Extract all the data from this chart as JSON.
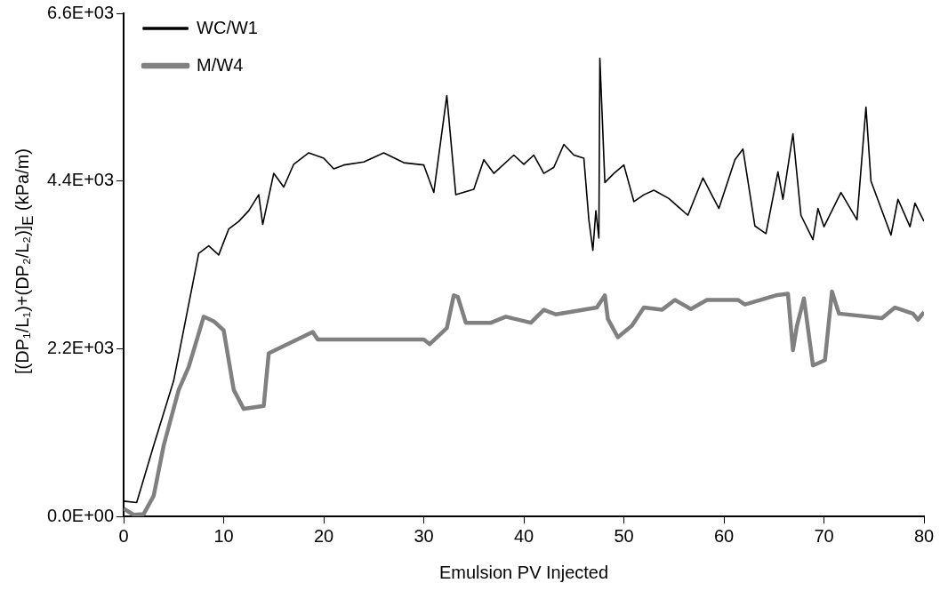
{
  "chart_data": {
    "type": "line",
    "xlabel": "Emulsion PV Injected",
    "ylabel": "[(DP₁/L₁)+(DP₂/L₂)]$_{E}$ (kPa/m)",
    "xlim": [
      0,
      80
    ],
    "xticks": [
      0,
      10,
      20,
      30,
      40,
      50,
      60,
      70,
      80
    ],
    "ylim": [
      0,
      6600
    ],
    "yticks": [
      {
        "value": 0,
        "label": "0.0E+00"
      },
      {
        "value": 2200,
        "label": "2.2E+03"
      },
      {
        "value": 4400,
        "label": "4.4E+03"
      },
      {
        "value": 6600,
        "label": "6.6E+03"
      }
    ],
    "grid": false,
    "legend": "top left",
    "marker": "none",
    "series": [
      {
        "name": "WC/W1",
        "color": "#000000",
        "x": [
          0,
          1.3,
          3,
          5,
          7.5,
          8.5,
          9.5,
          10.5,
          11.5,
          12.5,
          13.5,
          13.9,
          15,
          16,
          17,
          18.5,
          20,
          21,
          22,
          24,
          26,
          28,
          30,
          31,
          32.3,
          33.2,
          35,
          36,
          37,
          39,
          40,
          41,
          42,
          43,
          44,
          45,
          46,
          46.5,
          46.9,
          47.2,
          47.5,
          47.6,
          48.1,
          49,
          50,
          51,
          52,
          53,
          54.5,
          56.4,
          57.9,
          59.5,
          61.1,
          61.9,
          63.1,
          64.2,
          65.4,
          65.9,
          66.9,
          67.7,
          68.9,
          69.4,
          70,
          71.7,
          73.3,
          74.2,
          74.7,
          76.7,
          77.4,
          78.6,
          79.1,
          80
        ],
        "values": [
          200,
          180,
          930,
          1780,
          3450,
          3550,
          3430,
          3770,
          3870,
          4010,
          4220,
          3830,
          4500,
          4320,
          4620,
          4770,
          4700,
          4560,
          4610,
          4650,
          4770,
          4640,
          4610,
          4250,
          5520,
          4220,
          4290,
          4680,
          4500,
          4740,
          4620,
          4740,
          4500,
          4580,
          4880,
          4740,
          4700,
          3890,
          3490,
          4010,
          3650,
          6010,
          4380,
          4500,
          4610,
          4130,
          4220,
          4280,
          4170,
          3950,
          4440,
          4040,
          4680,
          4820,
          3810,
          3710,
          4520,
          4160,
          5020,
          3950,
          3630,
          4040,
          3800,
          4250,
          3890,
          5370,
          4400,
          3690,
          4160,
          3800,
          4110,
          3870
        ]
      },
      {
        "name": "M/W4",
        "color": "#808080",
        "x": [
          0,
          1,
          2,
          3,
          4,
          5.5,
          6.5,
          8,
          9,
          10,
          11,
          12,
          14,
          14.5,
          18.9,
          19.4,
          30,
          30.6,
          32.3,
          33,
          33.4,
          34.2,
          36.7,
          38.2,
          40.7,
          42,
          43.2,
          47.3,
          48.1,
          48.4,
          49.4,
          50.8,
          52,
          53.8,
          55.1,
          56.7,
          58.3,
          61.4,
          62.1,
          65.2,
          66.4,
          66.9,
          67.3,
          68,
          68.9,
          70.1,
          70.8,
          71.5,
          75.8,
          77.1,
          78.9,
          79.4,
          80
        ],
        "values": [
          100,
          20,
          30,
          270,
          930,
          1660,
          1960,
          2620,
          2560,
          2440,
          1660,
          1410,
          1450,
          2140,
          2420,
          2320,
          2320,
          2260,
          2470,
          2900,
          2880,
          2540,
          2540,
          2620,
          2540,
          2710,
          2650,
          2740,
          2900,
          2590,
          2350,
          2500,
          2740,
          2710,
          2840,
          2720,
          2840,
          2840,
          2780,
          2900,
          2920,
          2180,
          2500,
          2860,
          1980,
          2050,
          2950,
          2660,
          2600,
          2740,
          2660,
          2580,
          2680
        ]
      }
    ]
  }
}
